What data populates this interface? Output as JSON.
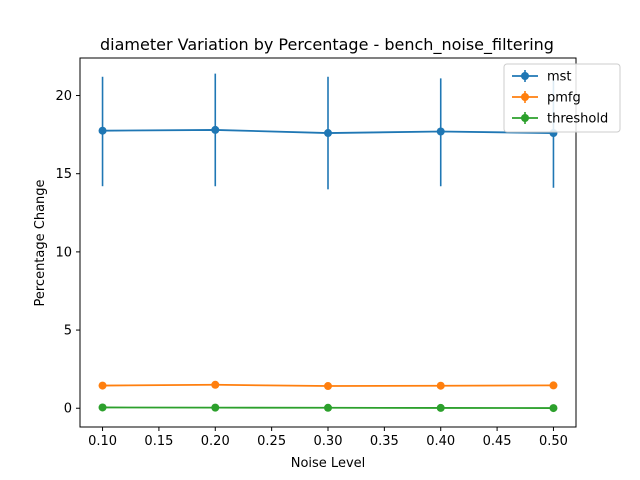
{
  "chart_data": {
    "type": "line",
    "title": "diameter Variation by Percentage - bench_noise_filtering",
    "xlabel": "Noise Level",
    "ylabel": "Percentage Change",
    "x": [
      0.1,
      0.2,
      0.3,
      0.4,
      0.5
    ],
    "xlim": [
      0.08,
      0.52
    ],
    "ylim": [
      -1.2,
      22.4
    ],
    "xticks": [
      0.1,
      0.15,
      0.2,
      0.25,
      0.3,
      0.35,
      0.4,
      0.45,
      0.5
    ],
    "xtick_labels": [
      "0.10",
      "0.15",
      "0.20",
      "0.25",
      "0.30",
      "0.35",
      "0.40",
      "0.45",
      "0.50"
    ],
    "yticks": [
      0,
      5,
      10,
      15,
      20
    ],
    "ytick_labels": [
      "0",
      "5",
      "10",
      "15",
      "20"
    ],
    "legend_position": "top-right",
    "grid": false,
    "series": [
      {
        "name": "mst",
        "color": "#1f77b4",
        "values": [
          17.75,
          17.8,
          17.6,
          17.7,
          17.6
        ],
        "error_low": [
          14.2,
          14.2,
          14.0,
          14.2,
          14.1
        ],
        "error_high": [
          21.2,
          21.4,
          21.2,
          21.1,
          21.1
        ]
      },
      {
        "name": "pmfg",
        "color": "#ff7f0e",
        "values": [
          1.45,
          1.5,
          1.42,
          1.44,
          1.46
        ],
        "error_low": [
          1.45,
          1.5,
          1.42,
          1.44,
          1.46
        ],
        "error_high": [
          1.45,
          1.5,
          1.42,
          1.44,
          1.46
        ]
      },
      {
        "name": "threshold",
        "color": "#2ca02c",
        "values": [
          0.05,
          0.04,
          0.03,
          0.02,
          0.01
        ],
        "error_low": [
          0.05,
          0.04,
          0.03,
          0.02,
          0.01
        ],
        "error_high": [
          0.05,
          0.04,
          0.03,
          0.02,
          0.01
        ]
      }
    ]
  }
}
